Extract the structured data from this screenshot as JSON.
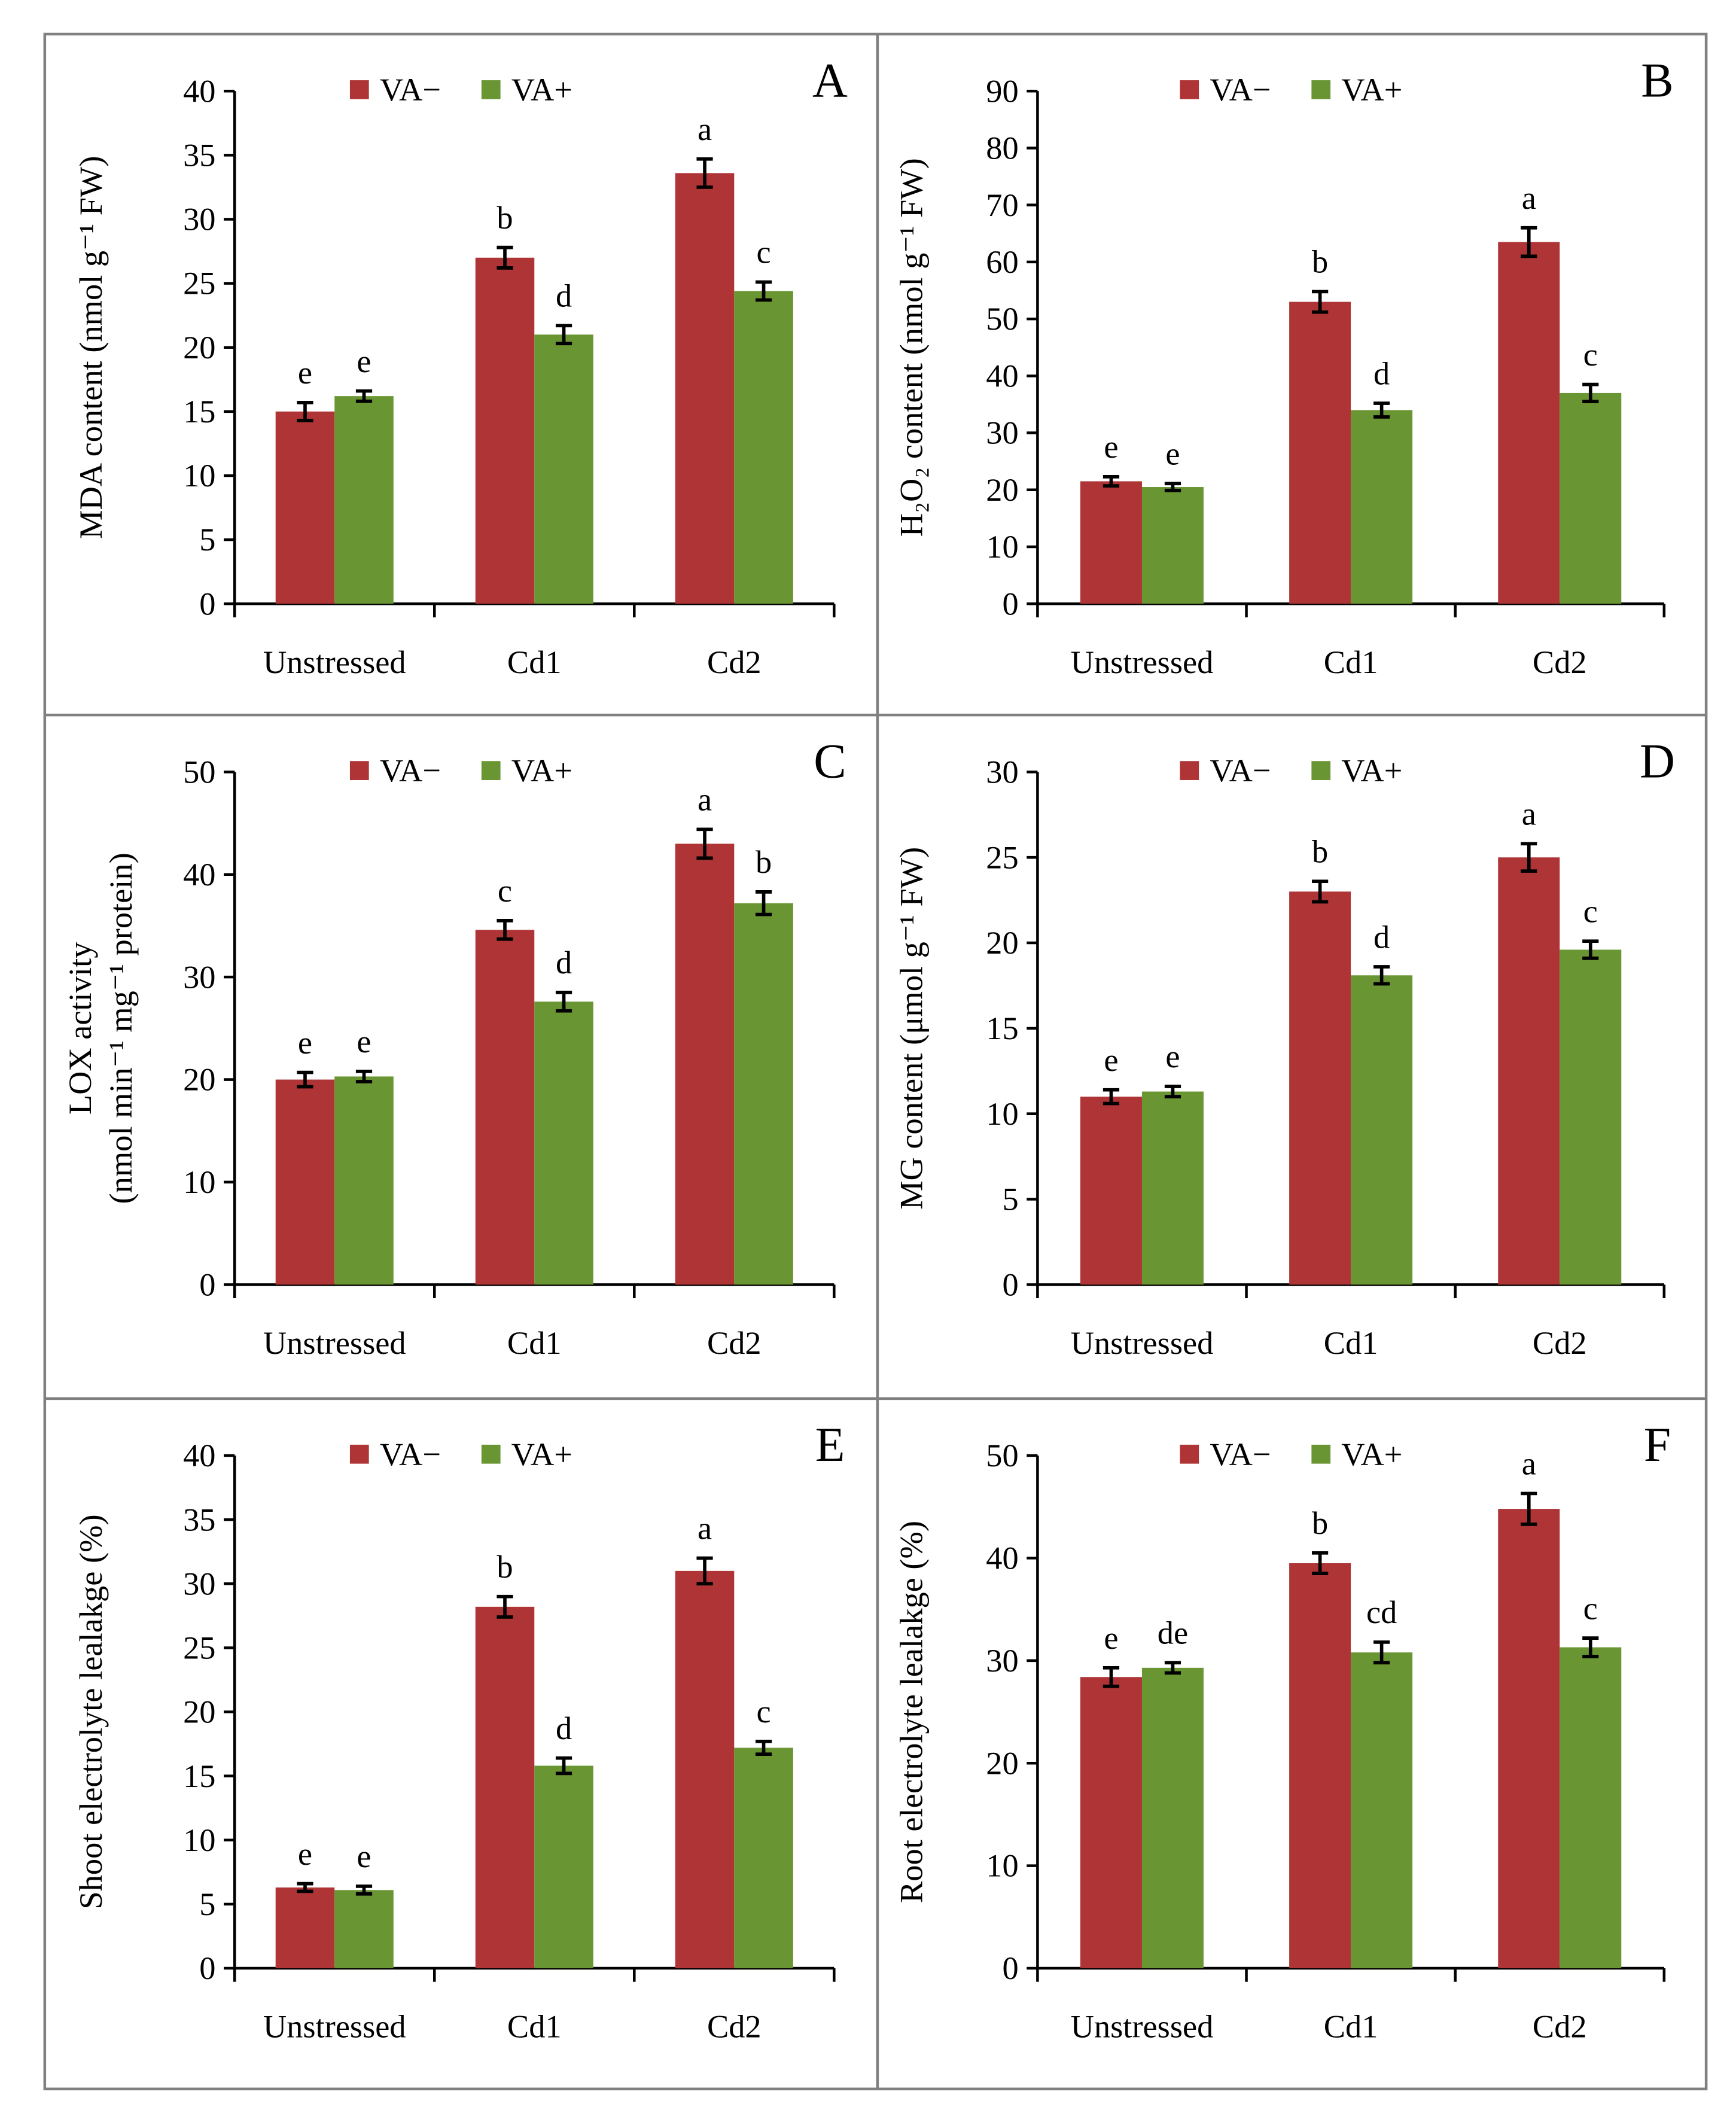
{
  "colors": {
    "va_minus": "#AE3435",
    "va_plus": "#6A9533",
    "frame": "#808080"
  },
  "chart_data": [
    {
      "panel": "A",
      "type": "bar",
      "ylabel": "MDA content (nmol g⁻¹ FW)",
      "ylabel_line2": "",
      "ylim": [
        0,
        40
      ],
      "yticks": [
        0,
        5,
        10,
        15,
        20,
        25,
        30,
        35,
        40
      ],
      "categories": [
        "Unstressed",
        "Cd1",
        "Cd2"
      ],
      "series": [
        {
          "name": "VA−",
          "values": [
            15.0,
            27.0,
            33.6
          ],
          "errors": [
            0.7,
            0.8,
            1.1
          ],
          "letters": [
            "e",
            "b",
            "a"
          ]
        },
        {
          "name": "VA+",
          "values": [
            16.2,
            21.0,
            24.4
          ],
          "errors": [
            0.4,
            0.7,
            0.7
          ],
          "letters": [
            "e",
            "d",
            "c"
          ]
        }
      ]
    },
    {
      "panel": "B",
      "type": "bar",
      "ylabel": "H₂O₂ content (nmol g⁻¹ FW)",
      "ylabel_line2": "",
      "ylim": [
        0,
        90
      ],
      "yticks": [
        0,
        10,
        20,
        30,
        40,
        50,
        60,
        70,
        80,
        90
      ],
      "categories": [
        "Unstressed",
        "Cd1",
        "Cd2"
      ],
      "series": [
        {
          "name": "VA−",
          "values": [
            21.5,
            53.0,
            63.5
          ],
          "errors": [
            0.8,
            1.8,
            2.5
          ],
          "letters": [
            "e",
            "b",
            "a"
          ]
        },
        {
          "name": "VA+",
          "values": [
            20.5,
            34.0,
            37.0
          ],
          "errors": [
            0.6,
            1.2,
            1.5
          ],
          "letters": [
            "e",
            "d",
            "c"
          ]
        }
      ]
    },
    {
      "panel": "C",
      "type": "bar",
      "ylabel": "LOX activity",
      "ylabel_line2": "(nmol min⁻¹ mg⁻¹ protein)",
      "ylim": [
        0,
        50
      ],
      "yticks": [
        0,
        10,
        20,
        30,
        40,
        50
      ],
      "categories": [
        "Unstressed",
        "Cd1",
        "Cd2"
      ],
      "series": [
        {
          "name": "VA−",
          "values": [
            20.0,
            34.6,
            43.0
          ],
          "errors": [
            0.7,
            0.9,
            1.4
          ],
          "letters": [
            "e",
            "c",
            "a"
          ]
        },
        {
          "name": "VA+",
          "values": [
            20.3,
            27.6,
            37.2
          ],
          "errors": [
            0.5,
            0.9,
            1.1
          ],
          "letters": [
            "e",
            "d",
            "b"
          ]
        }
      ]
    },
    {
      "panel": "D",
      "type": "bar",
      "ylabel": "MG content (μmol g⁻¹ FW)",
      "ylabel_line2": "",
      "ylim": [
        0,
        30
      ],
      "yticks": [
        0,
        5,
        10,
        15,
        20,
        25,
        30
      ],
      "categories": [
        "Unstressed",
        "Cd1",
        "Cd2"
      ],
      "series": [
        {
          "name": "VA−",
          "values": [
            11.0,
            23.0,
            25.0
          ],
          "errors": [
            0.4,
            0.6,
            0.8
          ],
          "letters": [
            "e",
            "b",
            "a"
          ]
        },
        {
          "name": "VA+",
          "values": [
            11.3,
            18.1,
            19.6
          ],
          "errors": [
            0.3,
            0.5,
            0.5
          ],
          "letters": [
            "e",
            "d",
            "c"
          ]
        }
      ]
    },
    {
      "panel": "E",
      "type": "bar",
      "ylabel": "Shoot electrolyte lealakge (%)",
      "ylabel_line2": "",
      "ylim": [
        0,
        40
      ],
      "yticks": [
        0,
        5,
        10,
        15,
        20,
        25,
        30,
        35,
        40
      ],
      "categories": [
        "Unstressed",
        "Cd1",
        "Cd2"
      ],
      "series": [
        {
          "name": "VA−",
          "values": [
            6.3,
            28.2,
            31.0
          ],
          "errors": [
            0.3,
            0.8,
            1.0
          ],
          "letters": [
            "e",
            "b",
            "a"
          ]
        },
        {
          "name": "VA+",
          "values": [
            6.1,
            15.8,
            17.2
          ],
          "errors": [
            0.3,
            0.6,
            0.5
          ],
          "letters": [
            "e",
            "d",
            "c"
          ]
        }
      ]
    },
    {
      "panel": "F",
      "type": "bar",
      "ylabel": "Root electrolyte lealakge (%)",
      "ylabel_line2": "",
      "ylim": [
        0,
        50
      ],
      "yticks": [
        0,
        10,
        20,
        30,
        40,
        50
      ],
      "categories": [
        "Unstressed",
        "Cd1",
        "Cd2"
      ],
      "series": [
        {
          "name": "VA−",
          "values": [
            28.4,
            39.5,
            44.8
          ],
          "errors": [
            0.9,
            1.0,
            1.5
          ],
          "letters": [
            "e",
            "b",
            "a"
          ]
        },
        {
          "name": "VA+",
          "values": [
            29.3,
            30.8,
            31.3
          ],
          "errors": [
            0.5,
            1.0,
            0.9
          ],
          "letters": [
            "de",
            "cd",
            "c"
          ]
        }
      ]
    }
  ]
}
